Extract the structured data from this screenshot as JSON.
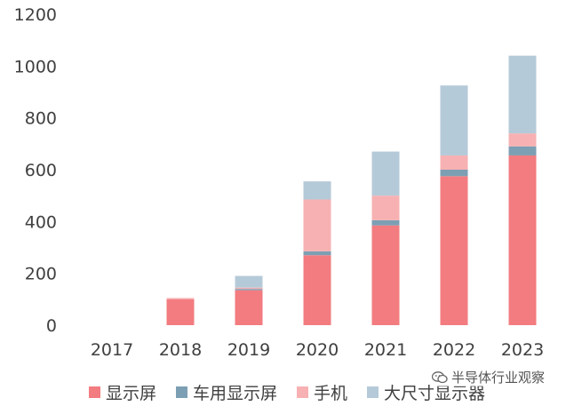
{
  "chart_data": {
    "type": "bar",
    "stacked": true,
    "categories": [
      "2017",
      "2018",
      "2019",
      "2020",
      "2021",
      "2022",
      "2023"
    ],
    "series": [
      {
        "name": "显示屏",
        "color": "#f27c80",
        "values": [
          0,
          100,
          135,
          270,
          385,
          575,
          655
        ]
      },
      {
        "name": "车用显示屏",
        "color": "#7d9fb3",
        "values": [
          0,
          0,
          5,
          15,
          20,
          25,
          35
        ]
      },
      {
        "name": "手机",
        "color": "#f7b1b3",
        "values": [
          0,
          5,
          5,
          200,
          95,
          55,
          50
        ]
      },
      {
        "name": "大尺寸显示器",
        "color": "#b5cad8",
        "values": [
          0,
          0,
          45,
          70,
          170,
          270,
          300
        ]
      }
    ],
    "yticks": [
      "0",
      "200",
      "400",
      "600",
      "800",
      "1000",
      "1200"
    ],
    "ylim": [
      0,
      1200
    ],
    "grid": false,
    "legend": "bottom"
  },
  "watermark": {
    "text": "半导体行业观察",
    "icon": "wechat-icon"
  }
}
